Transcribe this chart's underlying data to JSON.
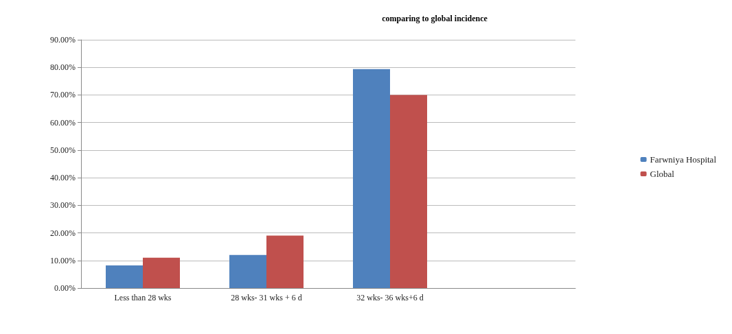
{
  "chart_data": {
    "type": "bar",
    "title": "comparing to global incidence",
    "categories": [
      "Less than 28 wks",
      "28 wks- 31 wks + 6 d",
      "32 wks- 36 wks+6 d",
      null
    ],
    "series": [
      {
        "name": "Farwniya Hospital",
        "color": "#4f81bd",
        "values": [
          8.2,
          12,
          79.4,
          null
        ]
      },
      {
        "name": "Global",
        "color": "#c0504d",
        "values": [
          11,
          19,
          70,
          null
        ]
      }
    ],
    "ylim": [
      0,
      90
    ],
    "yticks": [
      {
        "value": 0,
        "label": "0.00%"
      },
      {
        "value": 10,
        "label": "10.00%"
      },
      {
        "value": 20,
        "label": "20.00%"
      },
      {
        "value": 30,
        "label": "30.00%"
      },
      {
        "value": 40,
        "label": "40.00%"
      },
      {
        "value": 50,
        "label": "50.00%"
      },
      {
        "value": 60,
        "label": "60.00%"
      },
      {
        "value": 70,
        "label": "70.00%"
      },
      {
        "value": 80,
        "label": "80.00%"
      },
      {
        "value": 90,
        "label": "90.00%"
      }
    ],
    "grid": "y",
    "legend": "right"
  }
}
